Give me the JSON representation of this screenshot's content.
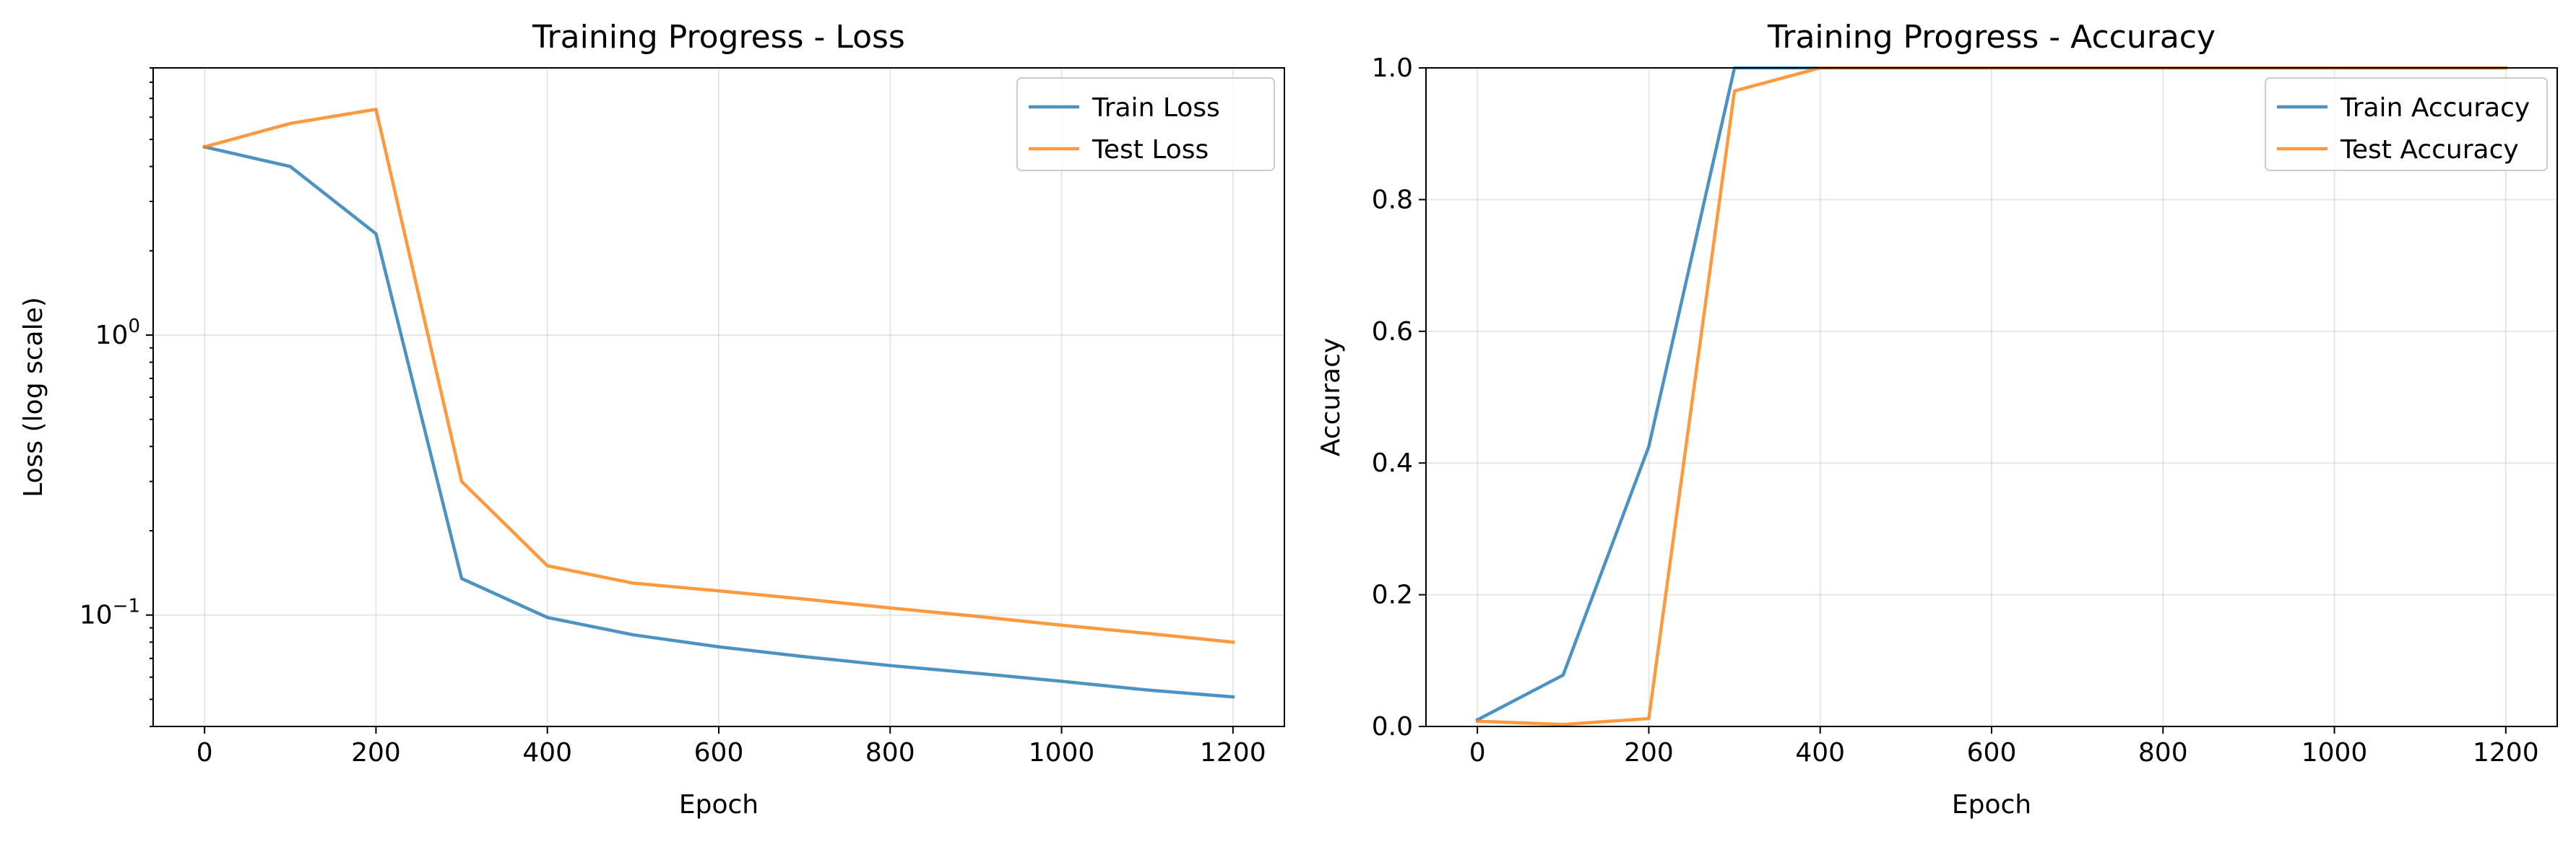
{
  "chart_data": [
    {
      "type": "line",
      "title": "Training Progress - Loss",
      "xlabel": "Epoch",
      "ylabel": "Loss (log scale)",
      "yscale": "log",
      "xlim": [
        -60,
        1260
      ],
      "ylim": [
        0.04,
        9
      ],
      "xticks": [
        0,
        200,
        400,
        600,
        800,
        1000,
        1200
      ],
      "yticks": [
        {
          "value": 0.1,
          "base": "10",
          "exp": "−1"
        },
        {
          "value": 1,
          "base": "10",
          "exp": "0"
        }
      ],
      "grid": true,
      "legend_position": "top-right",
      "x": [
        0,
        100,
        200,
        300,
        400,
        500,
        600,
        700,
        800,
        900,
        1000,
        1100,
        1200
      ],
      "series": [
        {
          "name": "Train Loss",
          "color": "#1f77b4",
          "values": [
            4.7,
            4.0,
            2.3,
            0.135,
            0.098,
            0.085,
            0.077,
            0.071,
            0.066,
            0.062,
            0.058,
            0.054,
            0.051
          ]
        },
        {
          "name": "Test Loss",
          "color": "#ff7f0e",
          "values": [
            4.7,
            5.7,
            6.4,
            0.3,
            0.15,
            0.13,
            0.122,
            0.114,
            0.106,
            0.099,
            0.092,
            0.086,
            0.08
          ]
        }
      ]
    },
    {
      "type": "line",
      "title": "Training Progress - Accuracy",
      "xlabel": "Epoch",
      "ylabel": "Accuracy",
      "yscale": "linear",
      "xlim": [
        -60,
        1260
      ],
      "ylim": [
        0,
        1.0
      ],
      "xticks": [
        0,
        200,
        400,
        600,
        800,
        1000,
        1200
      ],
      "yticks": [
        {
          "value": 0.0,
          "label": "0.0"
        },
        {
          "value": 0.2,
          "label": "0.2"
        },
        {
          "value": 0.4,
          "label": "0.4"
        },
        {
          "value": 0.6,
          "label": "0.6"
        },
        {
          "value": 0.8,
          "label": "0.8"
        },
        {
          "value": 1.0,
          "label": "1.0"
        }
      ],
      "grid": true,
      "legend_position": "top-right",
      "x": [
        0,
        100,
        200,
        300,
        400,
        500,
        600,
        700,
        800,
        900,
        1000,
        1100,
        1200
      ],
      "series": [
        {
          "name": "Train Accuracy",
          "color": "#1f77b4",
          "values": [
            0.01,
            0.078,
            0.425,
            1.0,
            1.0,
            1.0,
            1.0,
            1.0,
            1.0,
            1.0,
            1.0,
            1.0,
            1.0
          ]
        },
        {
          "name": "Test Accuracy",
          "color": "#ff7f0e",
          "values": [
            0.008,
            0.003,
            0.012,
            0.965,
            1.0,
            1.0,
            1.0,
            1.0,
            1.0,
            1.0,
            1.0,
            1.0,
            1.0
          ]
        }
      ]
    }
  ]
}
